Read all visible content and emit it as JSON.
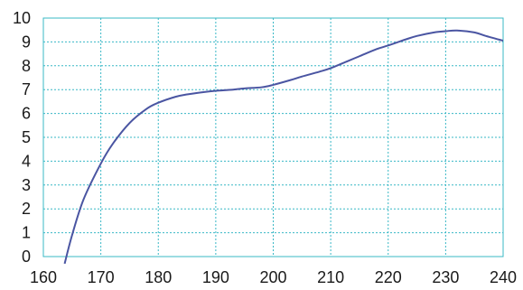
{
  "chart_data": {
    "type": "line",
    "title": "",
    "xlabel": "",
    "ylabel": "",
    "xlim": [
      160,
      240
    ],
    "ylim": [
      0,
      10
    ],
    "grid": true,
    "x_ticks": [
      160,
      170,
      180,
      190,
      200,
      210,
      220,
      230,
      240
    ],
    "y_ticks": [
      0,
      1,
      2,
      3,
      4,
      5,
      6,
      7,
      8,
      9,
      10
    ],
    "series": [
      {
        "color": "#4a55a2",
        "x": [
          163.7,
          165,
          167,
          170,
          172,
          175,
          178,
          180,
          183,
          185,
          188,
          190,
          193,
          195,
          198,
          200,
          203,
          205,
          208,
          210,
          213,
          215,
          218,
          220,
          223,
          225,
          228,
          230,
          232,
          235,
          237,
          240
        ],
        "y": [
          -0.3,
          0.9,
          2.4,
          3.9,
          4.7,
          5.6,
          6.2,
          6.45,
          6.7,
          6.8,
          6.9,
          6.95,
          7.0,
          7.05,
          7.1,
          7.2,
          7.4,
          7.55,
          7.75,
          7.9,
          8.2,
          8.4,
          8.7,
          8.85,
          9.1,
          9.25,
          9.4,
          9.45,
          9.48,
          9.4,
          9.25,
          9.05
        ]
      }
    ]
  },
  "colors": {
    "grid": "#39b8c6",
    "line": "#4a55a2",
    "text": "#1a1a1a"
  }
}
